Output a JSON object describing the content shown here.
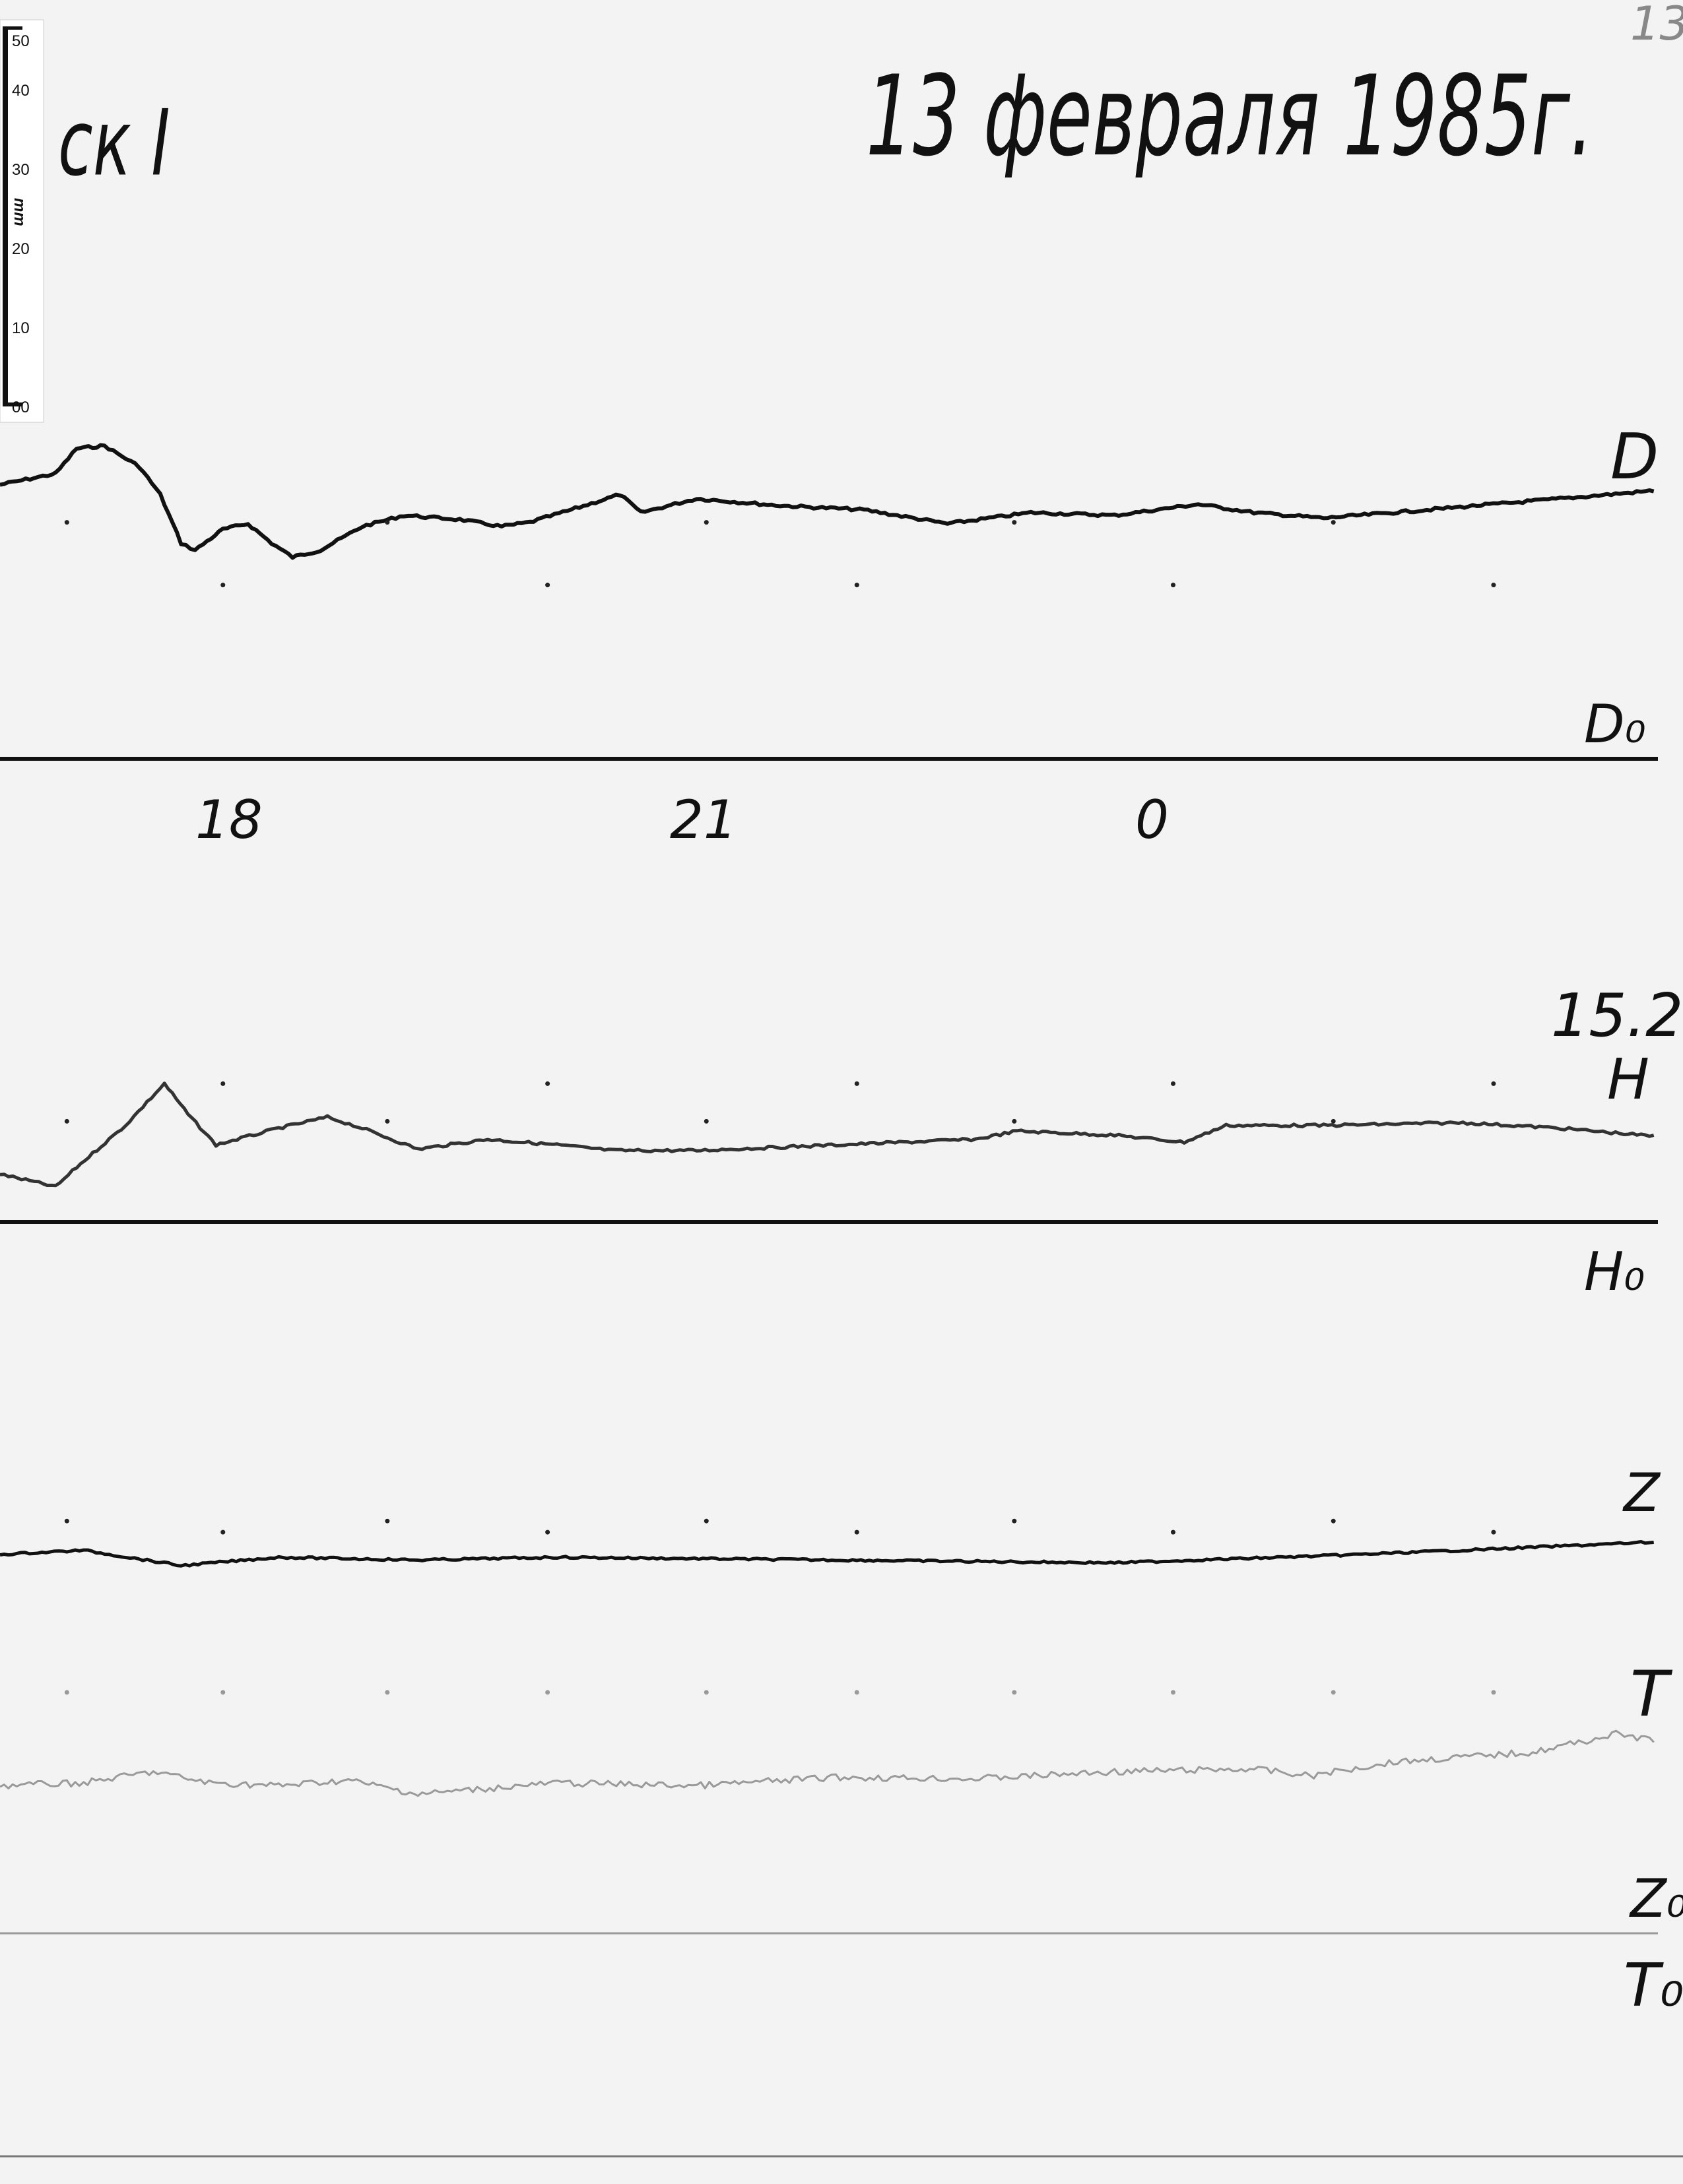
{
  "page_number": "13",
  "station_fragment": "ск I",
  "date": "13 февраля 1985г.",
  "scale_ruler": {
    "unit": "mm",
    "ticks": [
      "50",
      "40",
      "30",
      "20",
      "10",
      "00"
    ]
  },
  "hour_marks": [
    "18",
    "21",
    "0"
  ],
  "temperature": "15.2°C",
  "traces": {
    "D": {
      "label": "D",
      "baseline_label": "D₀"
    },
    "H": {
      "label": "H",
      "baseline_label": "H₀"
    },
    "Z": {
      "label": "Z",
      "baseline_label": "Z₀"
    },
    "T": {
      "label": "T",
      "baseline_label": "T₀"
    }
  },
  "colors": {
    "paper": "#f3f3f3",
    "ink": "#111111",
    "temperature_trace": "#9a9a9a"
  }
}
